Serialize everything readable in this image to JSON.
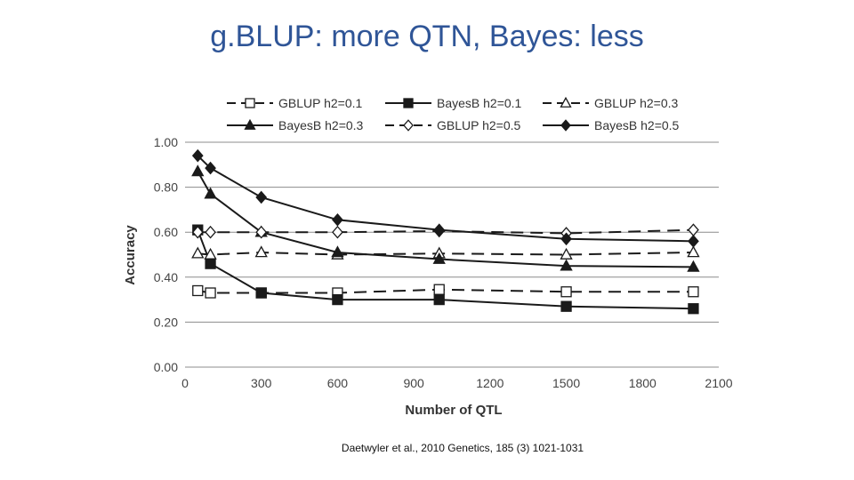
{
  "slide": {
    "title": "g.BLUP: more QTN,  Bayes: less",
    "citation": "Daetwyler et al., 2010 Genetics, 185 (3) 1021-1031"
  },
  "chart_data": {
    "type": "line",
    "title": "",
    "xlabel": "Number of QTL",
    "ylabel": "Accuracy",
    "xlim": [
      0,
      2100
    ],
    "ylim": [
      0,
      1
    ],
    "xticks": [
      0,
      300,
      600,
      900,
      1200,
      1500,
      1800,
      2100
    ],
    "xtick_labels": [
      "0",
      "300",
      "600",
      "900",
      "1200",
      "1500",
      "1800",
      "2100"
    ],
    "yticks": [
      0,
      0.2,
      0.4,
      0.6,
      0.8,
      1.0
    ],
    "ytick_labels": [
      "0.00",
      "0.20",
      "0.40",
      "0.60",
      "0.80",
      "1.00"
    ],
    "grid": "horizontal",
    "legend_position": "top",
    "x": [
      50,
      100,
      300,
      600,
      1000,
      1500,
      2000
    ],
    "series": [
      {
        "name": "GBLUP h2=0.1",
        "dashed": true,
        "marker": "square-open",
        "values": [
          0.34,
          0.33,
          0.33,
          0.33,
          0.345,
          0.335,
          0.335
        ]
      },
      {
        "name": "BayesB h2=0.1",
        "dashed": false,
        "marker": "square-filled",
        "values": [
          0.61,
          0.46,
          0.33,
          0.3,
          0.3,
          0.27,
          0.26
        ]
      },
      {
        "name": "GBLUP h2=0.3",
        "dashed": true,
        "marker": "triangle-open",
        "values": [
          0.505,
          0.5,
          0.51,
          0.5,
          0.505,
          0.5,
          0.51
        ]
      },
      {
        "name": "BayesB h2=0.3",
        "dashed": false,
        "marker": "triangle-filled",
        "values": [
          0.87,
          0.77,
          0.6,
          0.51,
          0.48,
          0.45,
          0.445
        ]
      },
      {
        "name": "GBLUP h2=0.5",
        "dashed": true,
        "marker": "diamond-open",
        "values": [
          0.6,
          0.6,
          0.6,
          0.6,
          0.605,
          0.595,
          0.61
        ]
      },
      {
        "name": "BayesB h2=0.5",
        "dashed": false,
        "marker": "diamond-filled",
        "values": [
          0.94,
          0.885,
          0.755,
          0.655,
          0.61,
          0.57,
          0.56
        ]
      }
    ],
    "colors": {
      "line": "#1a1a1a",
      "grid": "#8c8c8c",
      "open_fill": "#ffffff"
    }
  }
}
